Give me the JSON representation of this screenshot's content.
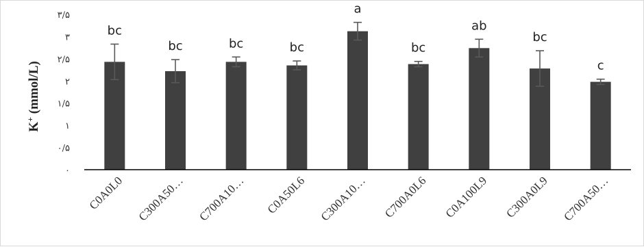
{
  "chart_data": {
    "type": "bar",
    "categories": [
      "C0A0L0",
      "C300A50…",
      "C700A10…",
      "C0A50L6",
      "C300A10…",
      "C700A0L6",
      "C0A100L9",
      "C300A0L9",
      "C700A50…"
    ],
    "values": [
      2.43,
      2.22,
      2.43,
      2.35,
      3.12,
      2.38,
      2.74,
      2.28,
      1.98
    ],
    "errors": [
      0.4,
      0.26,
      0.11,
      0.1,
      0.2,
      0.06,
      0.2,
      0.4,
      0.06
    ],
    "letters": [
      "bc",
      "bc",
      "bc",
      "bc",
      "a",
      "bc",
      "ab",
      "bc",
      "c"
    ],
    "ylabel": "K",
    "ylabel_superscript": "+",
    "ylabel_unit": " (mmol/L)",
    "ylim": [
      0,
      3.5
    ],
    "yticks": [
      0,
      0.5,
      1,
      1.5,
      2,
      2.5,
      3,
      3.5
    ],
    "ytick_labels": [
      "۰",
      "۰/۵",
      "۱",
      "۱/۵",
      "۲",
      "۲/۵",
      "۳",
      "۳/۵"
    ],
    "grid": false,
    "bar_color": "#404040",
    "error_color": "#595959"
  }
}
